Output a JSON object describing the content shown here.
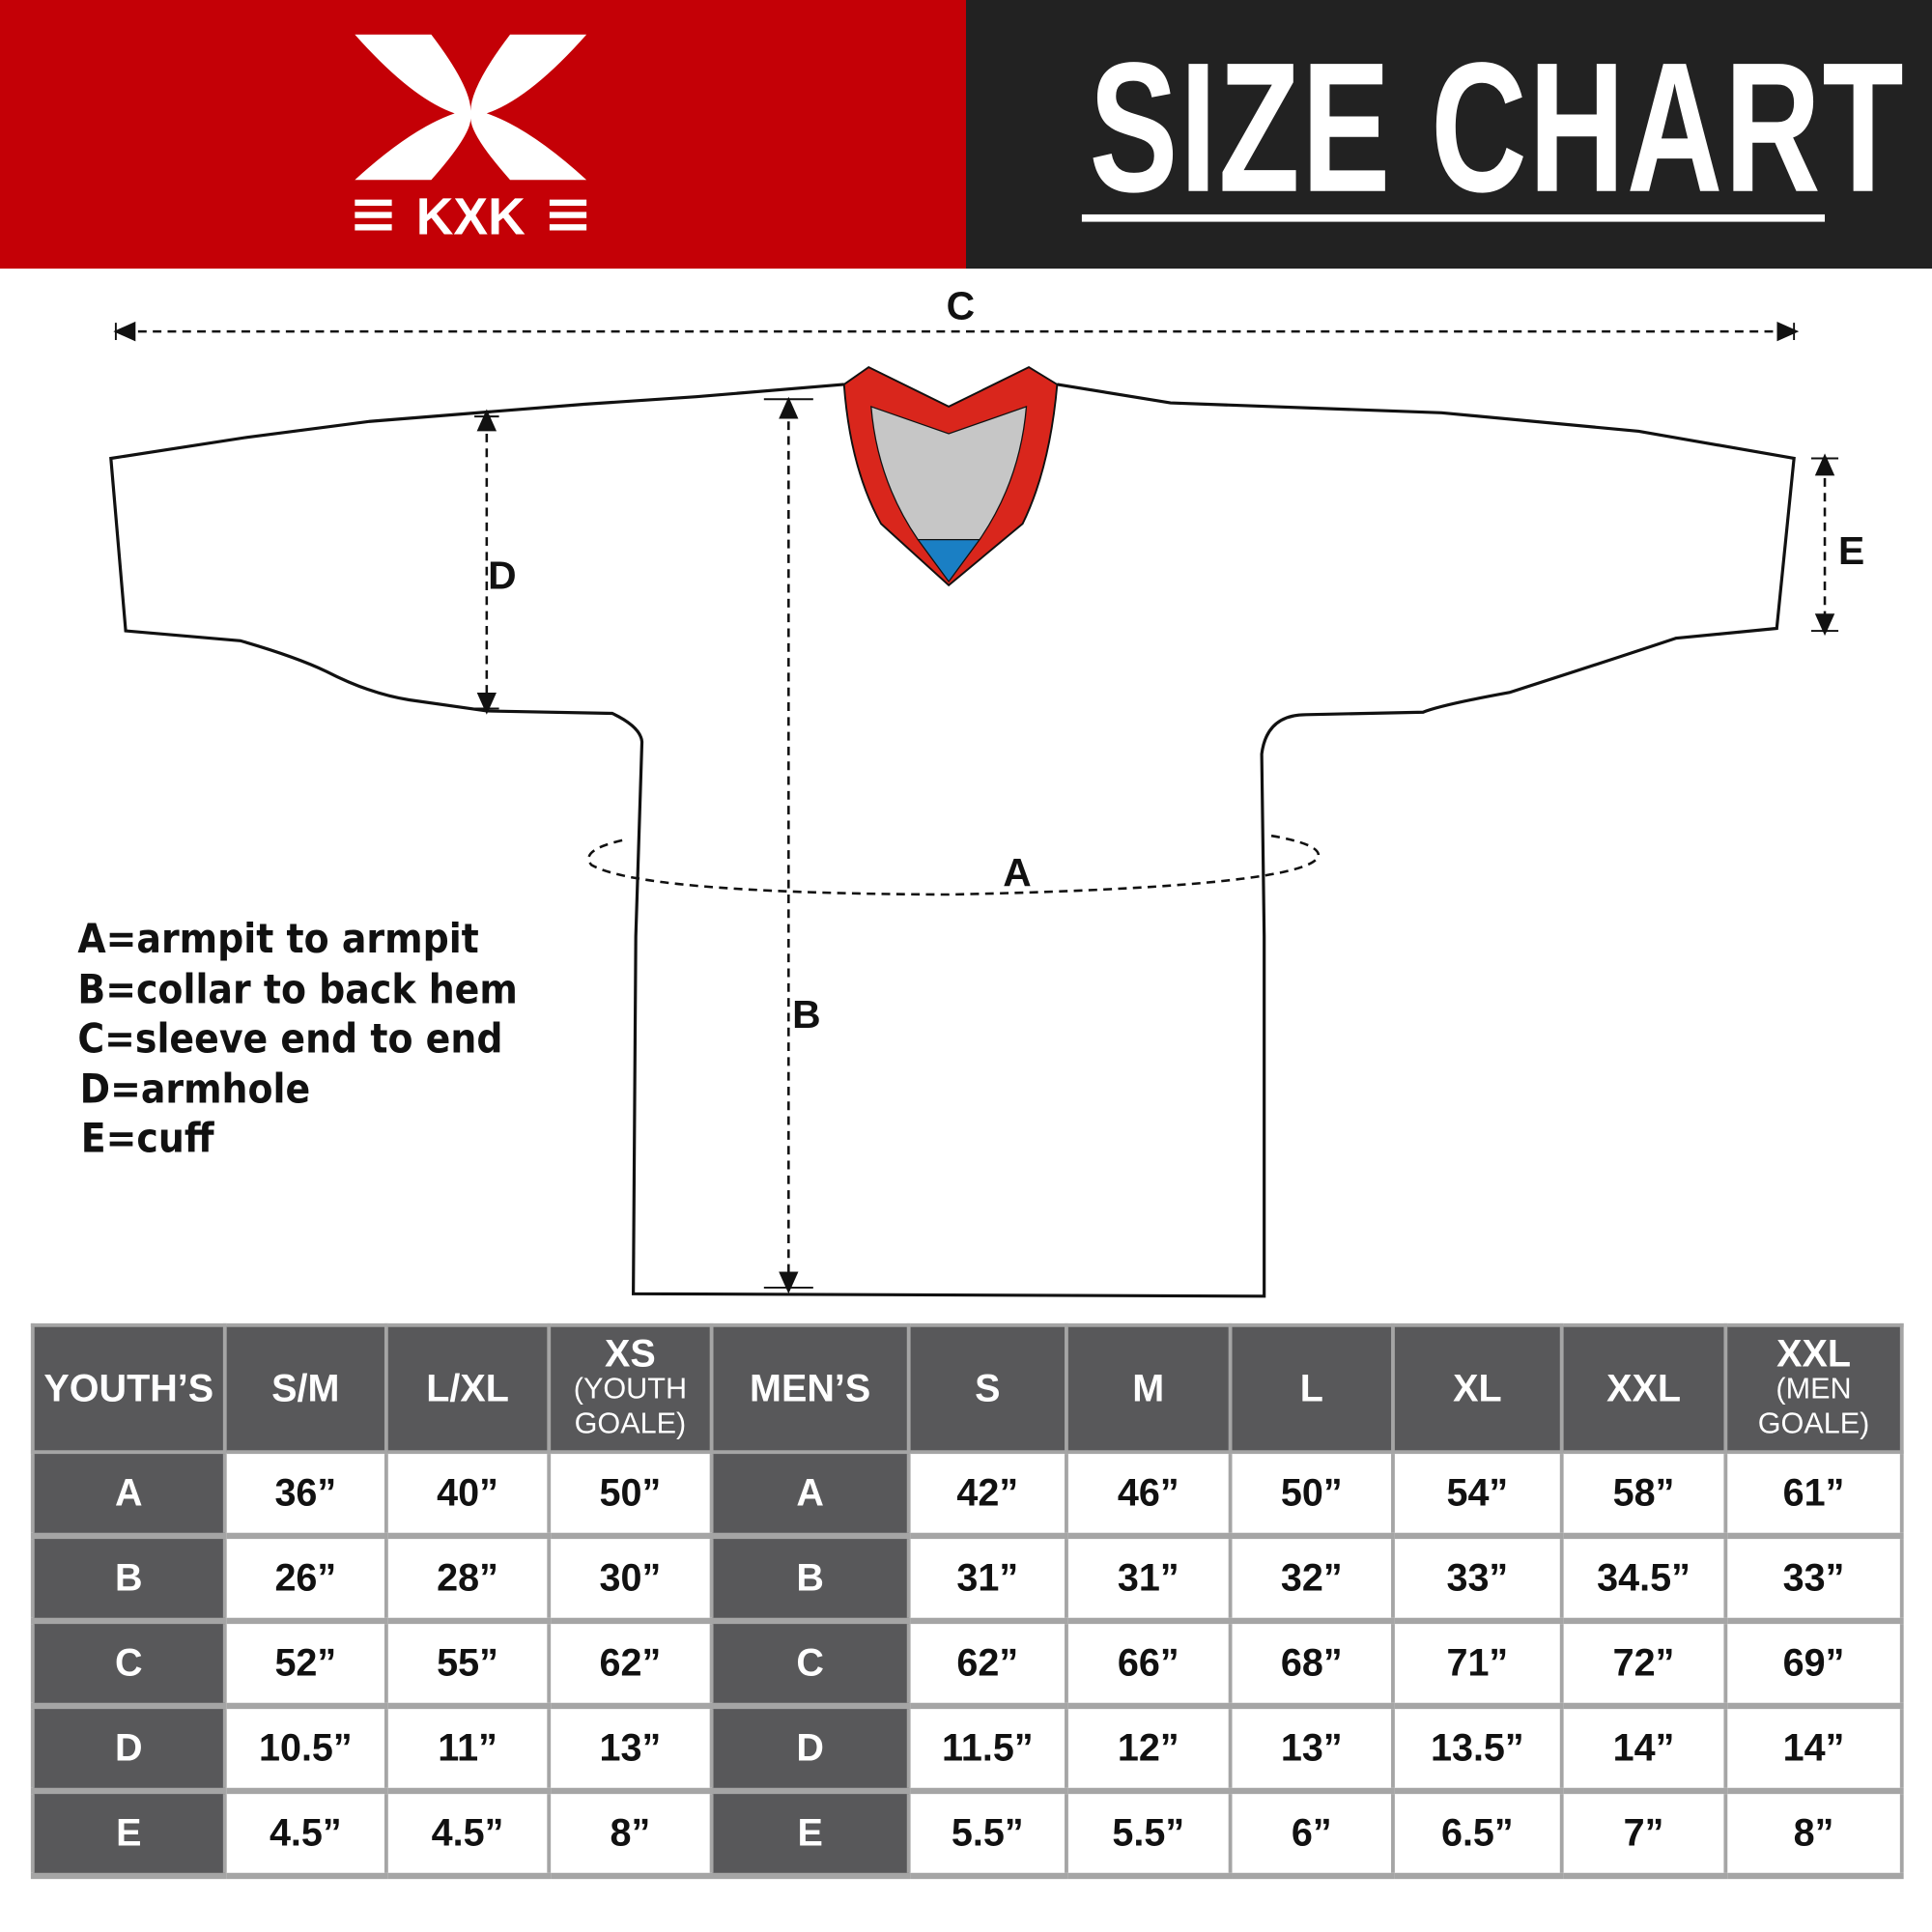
{
  "brand": {
    "name": "KXK",
    "color": "#c40006"
  },
  "header": {
    "title": "SIZE CHART"
  },
  "diagram": {
    "labels": {
      "a": "A",
      "b": "B",
      "c": "C",
      "d": "D",
      "e": "E"
    },
    "collar_colors": {
      "trim": "#d9261c",
      "inner": "#c6c6c6",
      "tab": "#1a7fc4"
    }
  },
  "legend": [
    "A=armpit to armpit",
    "B=collar to back hem",
    "C=sleeve end to end",
    "D=armhole",
    "E=cuff"
  ],
  "table": {
    "headers": [
      {
        "label": "YOUTH’S"
      },
      {
        "label": "S/M"
      },
      {
        "label": "L/XL"
      },
      {
        "label": "XS",
        "sub": "(YOUTH GOALE)"
      },
      {
        "label": "MEN’S"
      },
      {
        "label": "S"
      },
      {
        "label": "M"
      },
      {
        "label": "L"
      },
      {
        "label": "XL"
      },
      {
        "label": "XXL"
      },
      {
        "label": "XXL",
        "sub": "(MEN GOALE)"
      }
    ],
    "rows": [
      {
        "youth_label": "A",
        "youth": [
          "36”",
          "40”",
          "50”"
        ],
        "men_label": "A",
        "men": [
          "42”",
          "46”",
          "50”",
          "54”",
          "58”",
          "61”"
        ]
      },
      {
        "youth_label": "B",
        "youth": [
          "26”",
          "28”",
          "30”"
        ],
        "men_label": "B",
        "men": [
          "31”",
          "31”",
          "32”",
          "33”",
          "34.5”",
          "33”"
        ]
      },
      {
        "youth_label": "C",
        "youth": [
          "52”",
          "55”",
          "62”"
        ],
        "men_label": "C",
        "men": [
          "62”",
          "66”",
          "68”",
          "71”",
          "72”",
          "69”"
        ]
      },
      {
        "youth_label": "D",
        "youth": [
          "10.5”",
          "11”",
          "13”"
        ],
        "men_label": "D",
        "men": [
          "11.5”",
          "12”",
          "13”",
          "13.5”",
          "14”",
          "14”"
        ]
      },
      {
        "youth_label": "E",
        "youth": [
          "4.5”",
          "4.5”",
          "8”"
        ],
        "men_label": "E",
        "men": [
          "5.5”",
          "5.5”",
          "6”",
          "6.5”",
          "7”",
          "8”"
        ]
      }
    ]
  }
}
